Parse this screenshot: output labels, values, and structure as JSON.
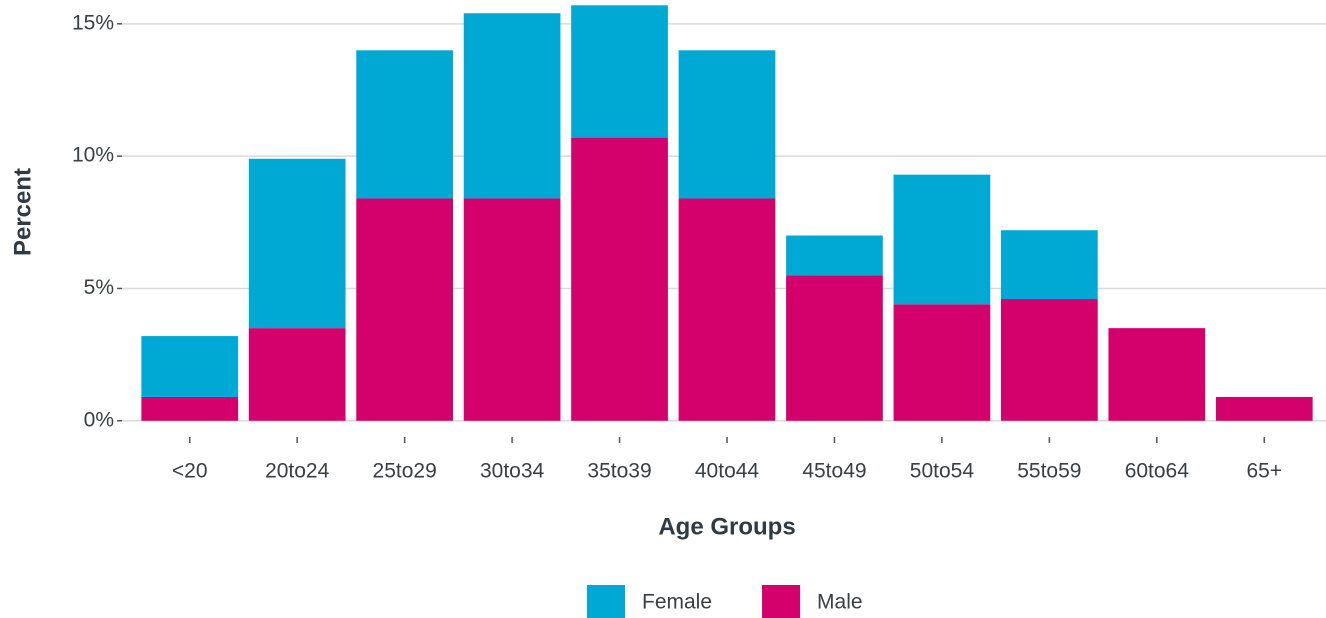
{
  "chart_data": {
    "type": "stacked_bar",
    "x_label": "Age Groups",
    "y_label": "Percent",
    "categories": [
      "<20",
      "20to24",
      "25to29",
      "30to34",
      "35to39",
      "40to44",
      "45to49",
      "50to54",
      "55to59",
      "60to64",
      "65+"
    ],
    "series": [
      {
        "name": "Female",
        "color": "#00a9d4",
        "values": [
          2.3,
          6.4,
          5.6,
          7.0,
          5.0,
          5.6,
          1.5,
          4.9,
          2.6,
          0,
          0
        ]
      },
      {
        "name": "Male",
        "color": "#d4006c",
        "values": [
          0.9,
          3.5,
          8.4,
          8.4,
          10.7,
          8.4,
          5.5,
          4.4,
          4.6,
          3.5,
          0.9
        ]
      }
    ],
    "stack_order": [
      "Male",
      "Female"
    ],
    "ylim": [
      -0.5,
      15.9
    ],
    "yticks": [
      {
        "value": 0,
        "label": "0%"
      },
      {
        "value": 5,
        "label": "5%"
      },
      {
        "value": 10,
        "label": "10%"
      },
      {
        "value": 15,
        "label": "15%"
      }
    ],
    "grid": true,
    "legend": "bottom"
  }
}
